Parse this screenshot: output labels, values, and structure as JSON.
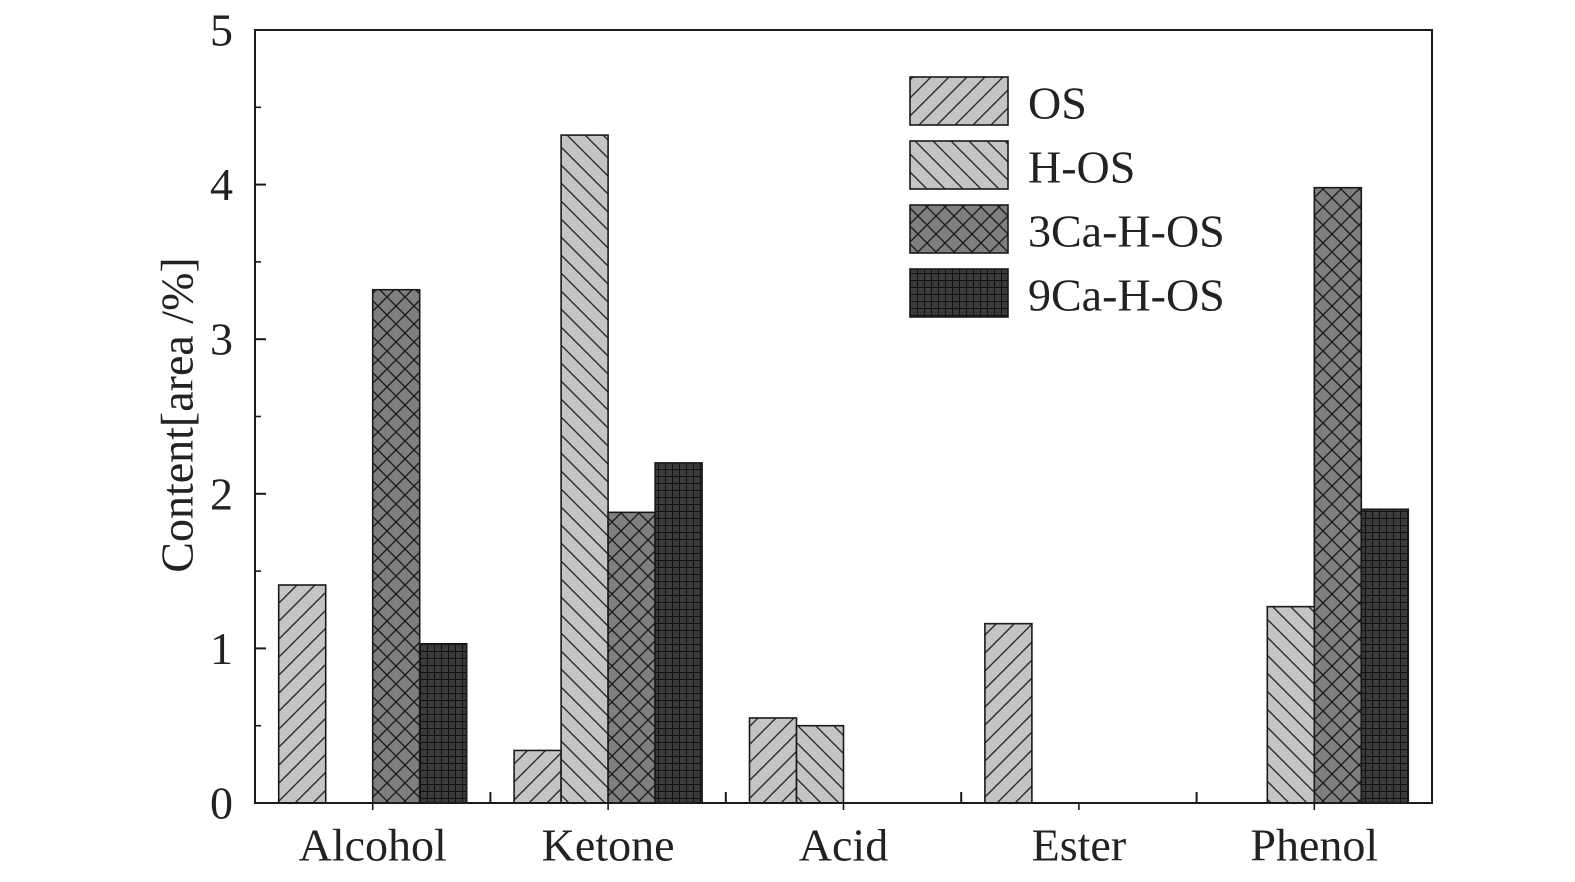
{
  "chart_data": {
    "type": "bar",
    "title": "",
    "xlabel": "",
    "ylabel": "Content[area /%]",
    "ylim": [
      0,
      5
    ],
    "yticks": [
      "0",
      "1",
      "2",
      "3",
      "4",
      "5"
    ],
    "categories": [
      "Alcohol",
      "Ketone",
      "Acid",
      "Ester",
      "Phenol"
    ],
    "series": [
      {
        "name": "OS",
        "values": [
          1.41,
          0.34,
          0.55,
          1.16,
          0
        ],
        "color": "#c4c4c4",
        "pattern": "diagonal-right"
      },
      {
        "name": "H-OS",
        "values": [
          0,
          4.32,
          0.5,
          0,
          1.27
        ],
        "color": "#c4c4c4",
        "pattern": "diagonal-left"
      },
      {
        "name": "3Ca-H-OS",
        "values": [
          3.32,
          1.88,
          0,
          0,
          3.98
        ],
        "color": "#7f7f7f",
        "pattern": "crosshatch"
      },
      {
        "name": "9Ca-H-OS",
        "values": [
          1.03,
          2.2,
          0,
          0,
          1.9
        ],
        "color": "#3a3a3a",
        "pattern": "grid"
      }
    ],
    "grid": false,
    "legend": "top-right"
  }
}
